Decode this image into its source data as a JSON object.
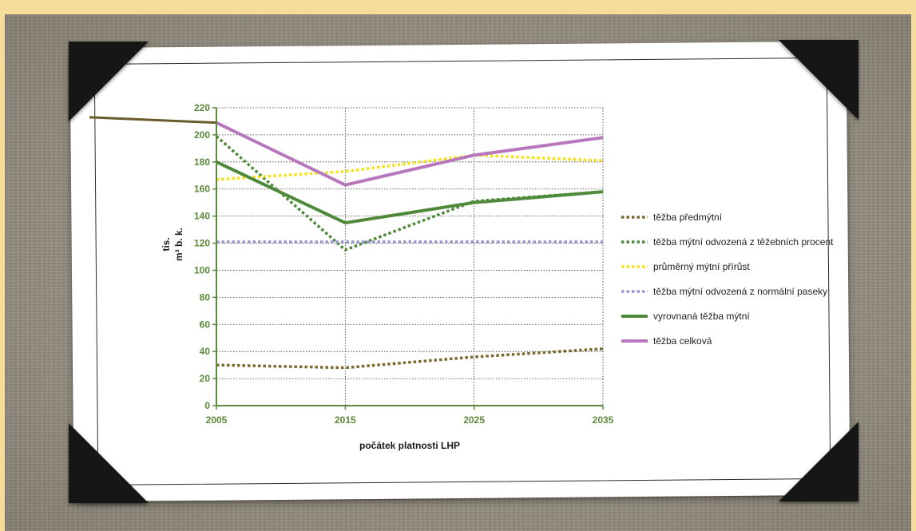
{
  "chart_data": {
    "type": "line",
    "x": [
      2005,
      2015,
      2025,
      2035
    ],
    "xlabel": "počátek platnosti LHP",
    "ylabel_line1": "tis.",
    "ylabel_line2": "m³ b. k.",
    "ylim": [
      0,
      220
    ],
    "yticks": [
      0,
      20,
      40,
      60,
      80,
      100,
      120,
      140,
      160,
      180,
      200,
      220
    ],
    "grid": "dotted",
    "legend_position": "right",
    "series": [
      {
        "name": "těžba předmýtní",
        "style": "dotted",
        "color": "#7a6a2e",
        "values": [
          30,
          28,
          36,
          42
        ]
      },
      {
        "name": "těžba mýtní odvozená z těžebních procent",
        "style": "dotted",
        "color": "#4f8a3a",
        "values": [
          199,
          115,
          151,
          158
        ]
      },
      {
        "name": "průměrný mýtní přírůst",
        "style": "dotted",
        "color": "#f5e21a",
        "values": [
          167,
          173,
          185,
          181
        ]
      },
      {
        "name": "těžba mýtní odvozená z normální paseky",
        "style": "dotted",
        "color": "#9a96d2",
        "values": [
          121,
          121,
          121,
          121
        ]
      },
      {
        "name": "vyrovnaná těžba mýtní",
        "style": "solid",
        "color": "#4f8a3a",
        "values": [
          180,
          135,
          150,
          158
        ]
      },
      {
        "name": "těžba celková",
        "style": "solid",
        "color": "#b877bd",
        "values": [
          209,
          163,
          185,
          198
        ]
      }
    ],
    "colors": {
      "axis": "#5a8a3a",
      "grid": "#333333",
      "pre_axis_line": "#6b5b2a"
    }
  }
}
